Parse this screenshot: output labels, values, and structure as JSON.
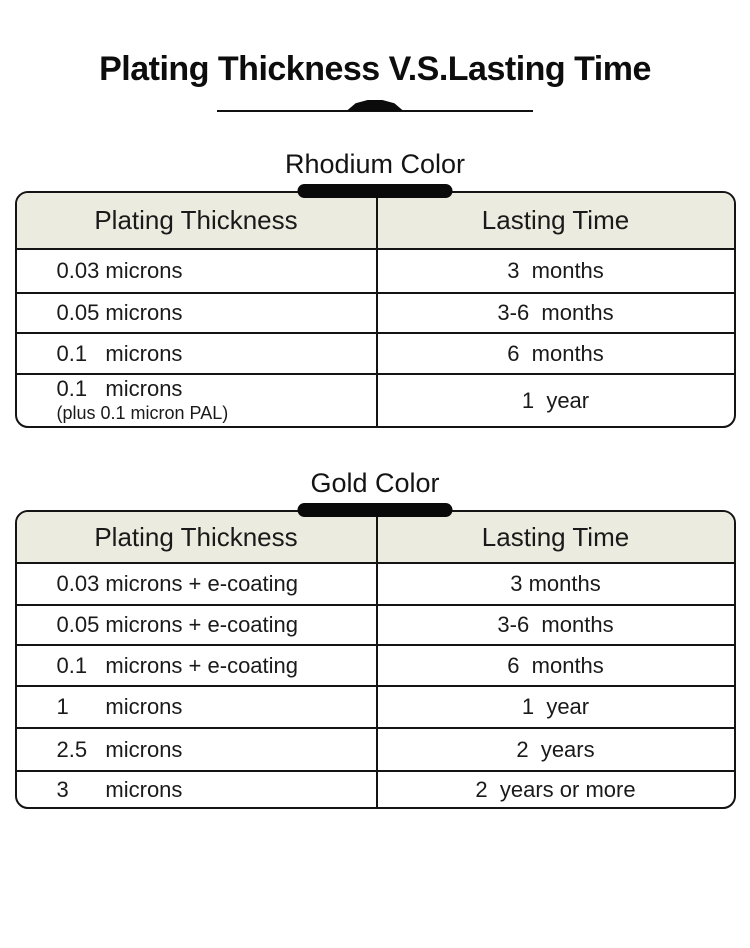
{
  "title": "Plating Thickness V.S.Lasting Time",
  "colors": {
    "header_bg": "#ecebdf",
    "border": "#141414",
    "bar": "#0a0a0a",
    "text": "#1a1a1a"
  },
  "sections": [
    {
      "heading": "Rhodium Color",
      "columns": [
        "Plating Thickness",
        "Lasting Time"
      ],
      "rows": [
        {
          "thickness": "0.03 microns",
          "time": "3  months"
        },
        {
          "thickness": "0.05 microns",
          "time": "3-6  months"
        },
        {
          "thickness": "0.1   microns",
          "time": "6  months"
        },
        {
          "thickness": "0.1   microns",
          "note": "(plus 0.1 micron PAL)",
          "time": "1  year"
        }
      ]
    },
    {
      "heading": "Gold Color",
      "columns": [
        "Plating Thickness",
        "Lasting Time"
      ],
      "rows": [
        {
          "thickness": "0.03 microns + e-coating",
          "time": "3 months"
        },
        {
          "thickness": "0.05 microns + e-coating",
          "time": "3-6  months"
        },
        {
          "thickness": "0.1   microns + e-coating",
          "time": "6  months"
        },
        {
          "thickness": "1      microns",
          "time": "1  year"
        },
        {
          "thickness": "2.5   microns",
          "time": "2  years"
        },
        {
          "thickness": "3      microns",
          "time": "2  years or more"
        }
      ]
    }
  ]
}
